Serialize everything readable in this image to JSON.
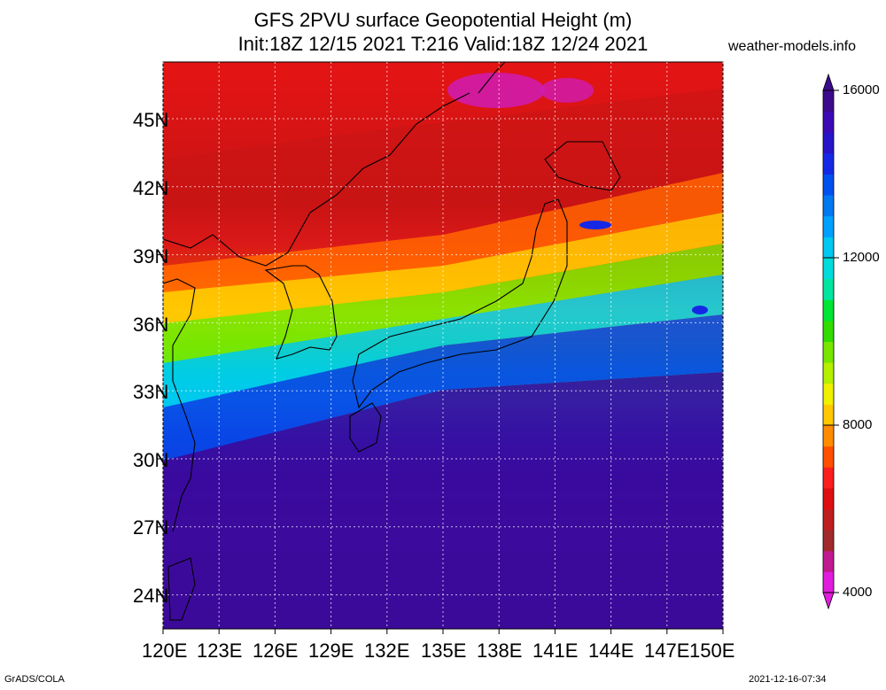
{
  "title": {
    "line1": "GFS 2PVU surface Geopotential Height (m)",
    "line2": "Init:18Z 12/15 2021 T:216 Valid:18Z 12/24 2021"
  },
  "site": "weather-models.info",
  "footer": {
    "left": "GrADS/COLA",
    "right": "2021-12-16-07:34"
  },
  "map": {
    "lat_labels": [
      "45N",
      "42N",
      "39N",
      "36N",
      "33N",
      "30N",
      "27N",
      "24N"
    ],
    "lat_values": [
      45,
      42,
      39,
      36,
      33,
      30,
      27,
      24
    ],
    "lon_labels": [
      "120E",
      "123E",
      "126E",
      "129E",
      "132E",
      "135E",
      "138E",
      "141E",
      "144E",
      "147E",
      "150E"
    ],
    "lon_values": [
      120,
      123,
      126,
      129,
      132,
      135,
      138,
      141,
      144,
      147,
      150
    ],
    "lon_range": [
      120,
      150
    ],
    "lat_range": [
      22.5,
      47.5
    ],
    "grid": true
  },
  "colorbar": {
    "labels": [
      "16000",
      "12000",
      "8000",
      "4000"
    ],
    "min": 4000,
    "max": 16000,
    "colors": [
      "#e01cdd",
      "#c0198f",
      "#a22a2a",
      "#be1e1e",
      "#e00f0f",
      "#fa1e1e",
      "#ff5000",
      "#ff8c00",
      "#ffc800",
      "#f0f000",
      "#b4f000",
      "#78e600",
      "#32dc00",
      "#00e632",
      "#00e6a0",
      "#00dcdc",
      "#00c8f0",
      "#00a0ff",
      "#0078f0",
      "#0050f0",
      "#1428e6",
      "#2814c8",
      "#3c0ab4",
      "#3c0a8c"
    ]
  },
  "icons": {
    "colorbar-arrow-up": "arrow-up-icon",
    "colorbar-arrow-down": "arrow-down-icon"
  }
}
